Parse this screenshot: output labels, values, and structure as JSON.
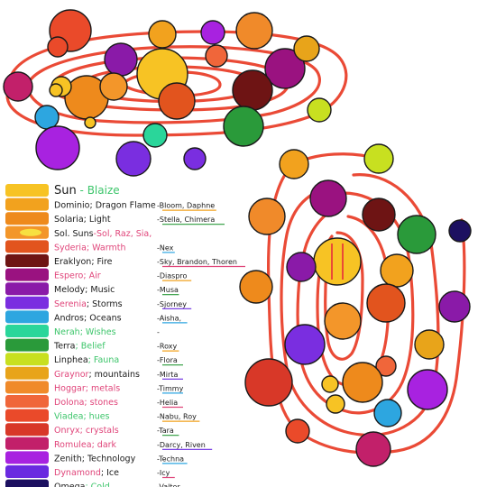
{
  "sun_label": {
    "name": "Sun",
    "dash": "-",
    "alias": "Blaize"
  },
  "legend": [
    {
      "color": "#f7c324",
      "name": "Sun",
      "sep": "",
      "domain": "",
      "dash": "",
      "fairies": "Blaize",
      "name_color": "#1a1a1a",
      "domain_color": "#1a1a1a"
    },
    {
      "color": "#f2a21e",
      "name": "Dominio",
      "sep": "; ",
      "domain": "Dragon Flame",
      "dash": "-",
      "fairies": "Bloom, Daphne",
      "name_color": "#1a1a1a",
      "domain_color": "#1a1a1a"
    },
    {
      "color": "#ee8a1c",
      "name": "Solaria",
      "sep": "; ",
      "domain": "Light",
      "dash": "-",
      "fairies": "Stella, Chimera",
      "name_color": "#1a1a1a",
      "domain_color": "#1a1a1a"
    },
    {
      "color": "#f3962a",
      "name": "Sol. Suns",
      "sep": "-",
      "domain": "Sol, Raz, Sia,",
      "dash": "",
      "fairies": "",
      "name_color": "#1a1a1a",
      "domain_color": "#e0457a"
    },
    {
      "color": "#e2541e",
      "name": "Syderia",
      "sep": "; ",
      "domain": "Warmth",
      "dash": "-",
      "fairies": "Nex",
      "name_color": "#e0457a",
      "domain_color": "#e0457a"
    },
    {
      "color": "#6e1414",
      "name": "Eraklyon",
      "sep": "; ",
      "domain": "Fire",
      "dash": "-",
      "fairies": "Sky, Brandon, Thoren",
      "name_color": "#1a1a1a",
      "domain_color": "#1a1a1a"
    },
    {
      "color": "#9a1280",
      "name": "Espero",
      "sep": "; ",
      "domain": "Air",
      "dash": "-",
      "fairies": "Diaspro",
      "name_color": "#e0457a",
      "domain_color": "#e0457a"
    },
    {
      "color": "#8a1aa8",
      "name": "Melody",
      "sep": "; ",
      "domain": "Music",
      "dash": "-",
      "fairies": "Musa",
      "name_color": "#1a1a1a",
      "domain_color": "#1a1a1a"
    },
    {
      "color": "#7a2ee0",
      "name": "Serenia",
      "sep": "; ",
      "domain": "Storms",
      "dash": "-",
      "fairies": "Sjorney",
      "name_color": "#e0457a",
      "domain_color": "#1a1a1a"
    },
    {
      "color": "#2da6e0",
      "name": "Andros",
      "sep": "; ",
      "domain": "Oceans",
      "dash": "-",
      "fairies": "Aisha,",
      "name_color": "#1a1a1a",
      "domain_color": "#1a1a1a"
    },
    {
      "color": "#2ad69a",
      "name": "Nerah",
      "sep": "; ",
      "domain": "Wishes",
      "dash": "-",
      "fairies": "",
      "name_color": "#3cc56a",
      "domain_color": "#3cc56a"
    },
    {
      "color": "#2a9a3a",
      "name": "Terra",
      "sep": "; ",
      "domain": "Belief",
      "dash": "-",
      "fairies": "Roxy",
      "name_color": "#1a1a1a",
      "domain_color": "#3cc56a"
    },
    {
      "color": "#c8e020",
      "name": "Linphea",
      "sep": "; ",
      "domain": "Fauna",
      "dash": "-",
      "fairies": "Flora",
      "name_color": "#1a1a1a",
      "domain_color": "#3cc56a"
    },
    {
      "color": "#e8a41a",
      "name": "Graynor",
      "sep": "; ",
      "domain": "mountains",
      "dash": "-",
      "fairies": "Mirta",
      "name_color": "#e0457a",
      "domain_color": "#1a1a1a"
    },
    {
      "color": "#f08a2a",
      "name": "Hoggar",
      "sep": "; ",
      "domain": "metals",
      "dash": "-",
      "fairies": "Timmy",
      "name_color": "#e0457a",
      "domain_color": "#e0457a"
    },
    {
      "color": "#f0663a",
      "name": "Dolona",
      "sep": "; ",
      "domain": "stones",
      "dash": "-",
      "fairies": "Helia",
      "name_color": "#e0457a",
      "domain_color": "#e0457a"
    },
    {
      "color": "#ea4a2a",
      "name": "Viadea",
      "sep": "; ",
      "domain": "hues",
      "dash": "-",
      "fairies": "Nabu, Roy",
      "name_color": "#3cc56a",
      "domain_color": "#3cc56a"
    },
    {
      "color": "#d83828",
      "name": "Onryx",
      "sep": "; ",
      "domain": "crystals",
      "dash": "-",
      "fairies": "Tara",
      "name_color": "#e0457a",
      "domain_color": "#e0457a"
    },
    {
      "color": "#c2206a",
      "name": "Romulea",
      "sep": "; ",
      "domain": "dark",
      "dash": "-",
      "fairies": "Darcy, Riven",
      "name_color": "#e0457a",
      "domain_color": "#e0457a"
    },
    {
      "color": "#a822e0",
      "name": "Zenith",
      "sep": "; ",
      "domain": "Technology",
      "dash": "-",
      "fairies": "Techna",
      "name_color": "#1a1a1a",
      "domain_color": "#1a1a1a"
    },
    {
      "color": "#6a2ae0",
      "name": "Dynamond",
      "sep": "; ",
      "domain": "Ice",
      "dash": "-",
      "fairies": "Icy",
      "name_color": "#e0457a",
      "domain_color": "#1a1a1a"
    },
    {
      "color": "#1c1060",
      "name": "Omega",
      "sep": "; ",
      "domain": "Cold",
      "dash": "-",
      "fairies": "Valtor",
      "name_color": "#1a1a1a",
      "domain_color": "#3cc56a"
    }
  ],
  "colors": {
    "orbit": "#ea4a36",
    "outline": "#1a1a1a",
    "sun_label": "#3cc56a"
  }
}
